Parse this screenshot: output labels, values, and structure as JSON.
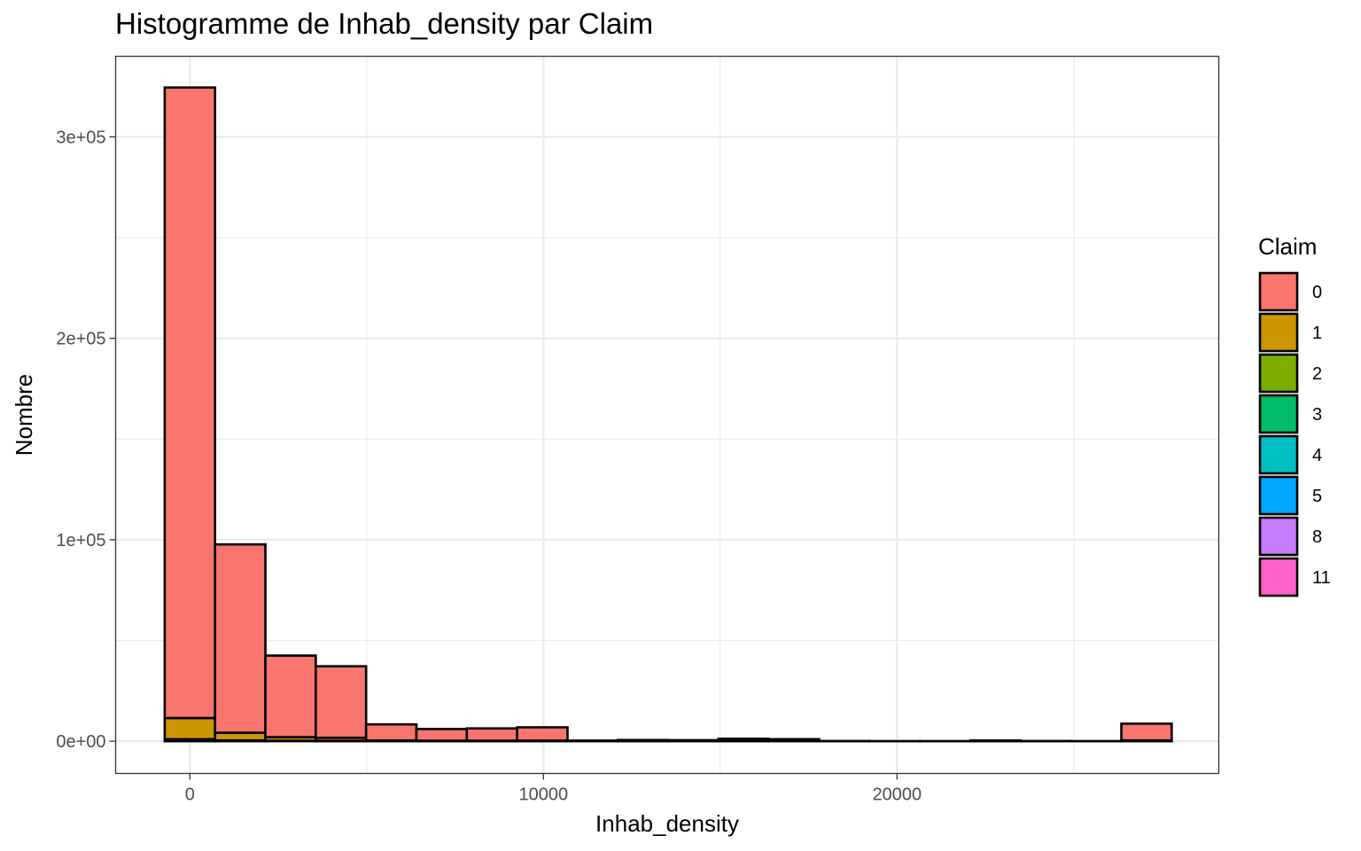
{
  "chart_data": {
    "type": "bar",
    "subtype": "stacked-histogram",
    "title": "Histogramme de Inhab_density par Claim",
    "xlabel": "Inhab_density",
    "ylabel": "Nombre",
    "xlim": [
      -2100,
      29100
    ],
    "ylim": [
      -16000,
      340000
    ],
    "x_ticks": [
      0,
      10000,
      20000
    ],
    "x_tick_labels": [
      "0",
      "10000",
      "20000"
    ],
    "x_minor_ticks": [
      5000,
      15000,
      25000
    ],
    "y_ticks": [
      0,
      100000,
      200000,
      300000
    ],
    "y_tick_labels": [
      "0e+00",
      "1e+05",
      "2e+05",
      "3e+05"
    ],
    "y_minor_ticks": [
      50000,
      150000,
      250000
    ],
    "grid": true,
    "legend": {
      "title": "Claim",
      "position": "right",
      "entries": [
        {
          "label": "0",
          "color": "#F8766D"
        },
        {
          "label": "1",
          "color": "#CD9600"
        },
        {
          "label": "2",
          "color": "#7CAE00"
        },
        {
          "label": "3",
          "color": "#00BE67"
        },
        {
          "label": "4",
          "color": "#00BFC4"
        },
        {
          "label": "5",
          "color": "#00A9FF"
        },
        {
          "label": "8",
          "color": "#C77CFF"
        },
        {
          "label": "11",
          "color": "#FF61CC"
        }
      ]
    },
    "bins": [
      {
        "x0": -712,
        "x1": 712,
        "counts": {
          "0": 313000,
          "1": 10500,
          "2": 900,
          "3": 100
        }
      },
      {
        "x0": 712,
        "x1": 2136,
        "counts": {
          "0": 93500,
          "1": 3800,
          "2": 400
        }
      },
      {
        "x0": 2136,
        "x1": 3560,
        "counts": {
          "0": 40500,
          "1": 1800,
          "2": 200
        }
      },
      {
        "x0": 3560,
        "x1": 4984,
        "counts": {
          "0": 35500,
          "1": 1500,
          "2": 200
        }
      },
      {
        "x0": 4984,
        "x1": 6408,
        "counts": {
          "0": 8000,
          "1": 350
        }
      },
      {
        "x0": 6408,
        "x1": 7832,
        "counts": {
          "0": 5800,
          "1": 250
        }
      },
      {
        "x0": 7832,
        "x1": 9256,
        "counts": {
          "0": 6100,
          "1": 250
        }
      },
      {
        "x0": 9256,
        "x1": 10680,
        "counts": {
          "0": 6600,
          "1": 300
        }
      },
      {
        "x0": 10680,
        "x1": 12104,
        "counts": {
          "0": 300
        }
      },
      {
        "x0": 12104,
        "x1": 13528,
        "counts": {
          "0": 600
        }
      },
      {
        "x0": 13528,
        "x1": 14952,
        "counts": {
          "0": 500
        }
      },
      {
        "x0": 14952,
        "x1": 16376,
        "counts": {
          "0": 1200
        }
      },
      {
        "x0": 16376,
        "x1": 17800,
        "counts": {
          "0": 1000
        }
      },
      {
        "x0": 17800,
        "x1": 19224,
        "counts": {
          "0": 100
        }
      },
      {
        "x0": 19224,
        "x1": 20648,
        "counts": {
          "0": 50
        }
      },
      {
        "x0": 20648,
        "x1": 22072,
        "counts": {
          "0": 50
        }
      },
      {
        "x0": 22072,
        "x1": 23496,
        "counts": {
          "0": 350
        }
      },
      {
        "x0": 23496,
        "x1": 24920,
        "counts": {
          "0": 100
        }
      },
      {
        "x0": 24920,
        "x1": 26344,
        "counts": {
          "0": 50
        }
      },
      {
        "x0": 26344,
        "x1": 27768,
        "counts": {
          "0": 8300,
          "1": 400
        }
      }
    ]
  }
}
